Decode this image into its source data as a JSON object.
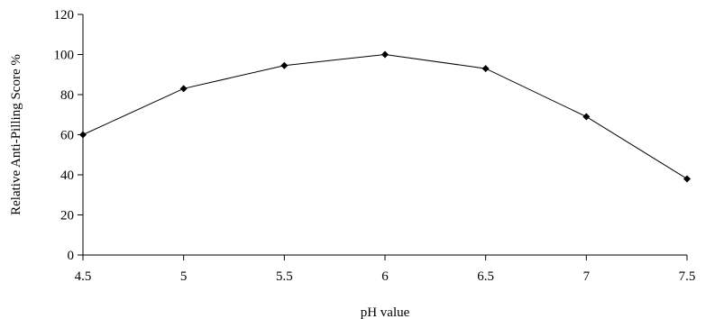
{
  "chart_data": {
    "type": "line",
    "title": "",
    "xlabel": "pH value",
    "ylabel": "Relative Anti-Pilling Score %",
    "x": [
      4.5,
      5,
      5.5,
      6,
      6.5,
      7,
      7.5
    ],
    "x_tick_labels": [
      "4.5",
      "5",
      "5.5",
      "6",
      "6.5",
      "7",
      "7.5"
    ],
    "xlim": [
      4.5,
      7.5
    ],
    "ylim": [
      0,
      120
    ],
    "y_ticks": [
      0,
      20,
      40,
      60,
      80,
      100,
      120
    ],
    "grid": false,
    "legend": "none",
    "marker": "diamond",
    "series": [
      {
        "values": [
          60,
          83,
          94.5,
          100,
          93,
          69,
          38
        ],
        "color": "#000000"
      }
    ]
  }
}
